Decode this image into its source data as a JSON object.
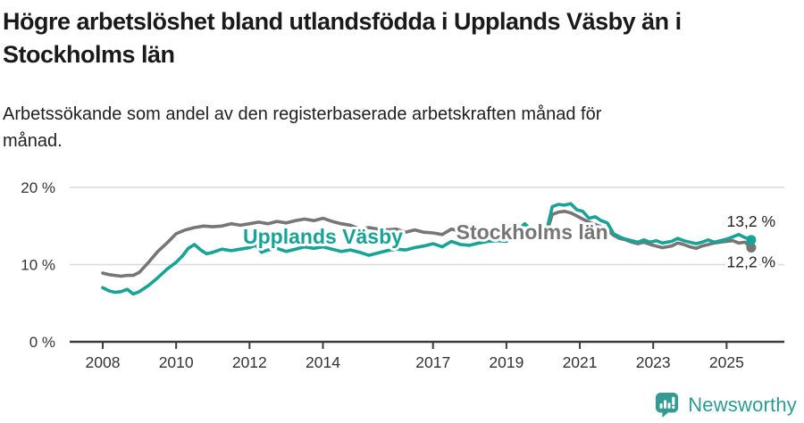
{
  "header": {
    "title": "Högre arbetslöshet bland utlandsfödda i Upplands Väsby än i Stockholms län",
    "subtitle": "Arbetssökande som andel av den registerbaserade arbetskraften månad för månad."
  },
  "chart_data": {
    "type": "line",
    "title": "Högre arbetslöshet bland utlandsfödda i Upplands Väsby än i Stockholms län",
    "subtitle": "Arbetssökande som andel av den registerbaserade arbetskraften månad för månad.",
    "unit": "%",
    "grid": "horizontal-only",
    "legend_position": "inline-on-lines",
    "xlim": [
      2007.2,
      2026.2
    ],
    "ylim": [
      0,
      20
    ],
    "x_ticks": [
      2008,
      2010,
      2012,
      2014,
      2017,
      2019,
      2021,
      2023,
      2025
    ],
    "y_ticks": [
      {
        "value": 0,
        "label": "0 %"
      },
      {
        "value": 10,
        "label": "10 %"
      },
      {
        "value": 20,
        "label": "20 %"
      }
    ],
    "series": [
      {
        "name": "Stockholms län",
        "color": "#767676",
        "end_label": "12,2 %",
        "end_value": 12.2,
        "label_at": {
          "x": 2019.7,
          "y": 13.3
        },
        "points": [
          [
            2008.0,
            8.9
          ],
          [
            2008.17,
            8.7
          ],
          [
            2008.33,
            8.6
          ],
          [
            2008.5,
            8.5
          ],
          [
            2008.67,
            8.6
          ],
          [
            2008.83,
            8.6
          ],
          [
            2009.0,
            9.0
          ],
          [
            2009.25,
            10.3
          ],
          [
            2009.5,
            11.7
          ],
          [
            2009.75,
            12.8
          ],
          [
            2010.0,
            14.0
          ],
          [
            2010.25,
            14.5
          ],
          [
            2010.5,
            14.8
          ],
          [
            2010.75,
            15.0
          ],
          [
            2011.0,
            14.9
          ],
          [
            2011.25,
            15.0
          ],
          [
            2011.5,
            15.3
          ],
          [
            2011.75,
            15.1
          ],
          [
            2012.0,
            15.3
          ],
          [
            2012.25,
            15.5
          ],
          [
            2012.5,
            15.3
          ],
          [
            2012.75,
            15.6
          ],
          [
            2013.0,
            15.4
          ],
          [
            2013.25,
            15.7
          ],
          [
            2013.5,
            15.9
          ],
          [
            2013.75,
            15.7
          ],
          [
            2014.0,
            16.0
          ],
          [
            2014.25,
            15.6
          ],
          [
            2014.5,
            15.3
          ],
          [
            2014.75,
            15.1
          ],
          [
            2015.0,
            14.6
          ],
          [
            2015.25,
            14.8
          ],
          [
            2015.5,
            14.6
          ],
          [
            2015.75,
            14.5
          ],
          [
            2016.0,
            14.6
          ],
          [
            2016.25,
            14.2
          ],
          [
            2016.5,
            14.5
          ],
          [
            2016.75,
            14.2
          ],
          [
            2017.0,
            14.1
          ],
          [
            2017.25,
            13.9
          ],
          [
            2017.5,
            14.6
          ],
          [
            2017.75,
            14.3
          ],
          [
            2018.0,
            14.4
          ],
          [
            2018.25,
            14.2
          ],
          [
            2018.5,
            14.3
          ],
          [
            2018.75,
            14.0
          ],
          [
            2019.0,
            13.9
          ],
          [
            2019.25,
            14.0
          ],
          [
            2019.5,
            14.2
          ],
          [
            2019.75,
            13.8
          ],
          [
            2019.92,
            13.9
          ],
          [
            2020.1,
            14.2
          ],
          [
            2020.25,
            16.5
          ],
          [
            2020.42,
            16.8
          ],
          [
            2020.58,
            16.9
          ],
          [
            2020.75,
            16.7
          ],
          [
            2020.92,
            16.3
          ],
          [
            2021.08,
            15.9
          ],
          [
            2021.25,
            15.5
          ],
          [
            2021.42,
            15.2
          ],
          [
            2021.58,
            14.9
          ],
          [
            2021.75,
            14.5
          ],
          [
            2021.92,
            13.8
          ],
          [
            2022.08,
            13.4
          ],
          [
            2022.25,
            13.2
          ],
          [
            2022.42,
            12.9
          ],
          [
            2022.58,
            12.7
          ],
          [
            2022.75,
            12.9
          ],
          [
            2022.92,
            12.6
          ],
          [
            2023.08,
            12.4
          ],
          [
            2023.25,
            12.2
          ],
          [
            2023.5,
            12.4
          ],
          [
            2023.67,
            12.8
          ],
          [
            2023.83,
            12.6
          ],
          [
            2024.0,
            12.3
          ],
          [
            2024.17,
            12.1
          ],
          [
            2024.33,
            12.4
          ],
          [
            2024.5,
            12.6
          ],
          [
            2024.67,
            12.8
          ],
          [
            2024.83,
            12.9
          ],
          [
            2025.0,
            13.0
          ],
          [
            2025.17,
            13.1
          ],
          [
            2025.33,
            12.8
          ],
          [
            2025.5,
            12.9
          ],
          [
            2025.67,
            12.2
          ]
        ]
      },
      {
        "name": "Upplands Väsby",
        "color": "#18a396",
        "end_label": "13,2 %",
        "end_value": 13.2,
        "label_at": {
          "x": 2014.0,
          "y": 12.7
        },
        "points": [
          [
            2008.0,
            7.0
          ],
          [
            2008.17,
            6.6
          ],
          [
            2008.33,
            6.4
          ],
          [
            2008.5,
            6.5
          ],
          [
            2008.67,
            6.8
          ],
          [
            2008.83,
            6.2
          ],
          [
            2009.0,
            6.5
          ],
          [
            2009.25,
            7.3
          ],
          [
            2009.5,
            8.3
          ],
          [
            2009.75,
            9.4
          ],
          [
            2010.0,
            10.3
          ],
          [
            2010.17,
            11.1
          ],
          [
            2010.33,
            12.1
          ],
          [
            2010.5,
            12.6
          ],
          [
            2010.67,
            11.9
          ],
          [
            2010.83,
            11.4
          ],
          [
            2011.0,
            11.6
          ],
          [
            2011.25,
            12.0
          ],
          [
            2011.5,
            11.8
          ],
          [
            2011.75,
            12.0
          ],
          [
            2012.0,
            12.2
          ],
          [
            2012.17,
            12.5
          ],
          [
            2012.33,
            11.6
          ],
          [
            2012.5,
            11.9
          ],
          [
            2012.75,
            12.1
          ],
          [
            2013.0,
            11.7
          ],
          [
            2013.25,
            12.0
          ],
          [
            2013.5,
            12.3
          ],
          [
            2013.75,
            12.1
          ],
          [
            2014.0,
            12.3
          ],
          [
            2014.25,
            12.0
          ],
          [
            2014.5,
            11.7
          ],
          [
            2014.75,
            11.9
          ],
          [
            2015.0,
            11.6
          ],
          [
            2015.25,
            11.2
          ],
          [
            2015.5,
            11.5
          ],
          [
            2015.75,
            11.8
          ],
          [
            2016.0,
            12.0
          ],
          [
            2016.25,
            11.9
          ],
          [
            2016.5,
            12.2
          ],
          [
            2016.75,
            12.4
          ],
          [
            2017.0,
            12.7
          ],
          [
            2017.25,
            12.3
          ],
          [
            2017.5,
            13.0
          ],
          [
            2017.75,
            12.6
          ],
          [
            2018.0,
            12.5
          ],
          [
            2018.25,
            12.8
          ],
          [
            2018.5,
            13.0
          ],
          [
            2018.75,
            13.1
          ],
          [
            2019.0,
            13.0
          ],
          [
            2019.25,
            14.2
          ],
          [
            2019.5,
            15.3
          ],
          [
            2019.75,
            14.2
          ],
          [
            2019.92,
            14.0
          ],
          [
            2020.1,
            14.5
          ],
          [
            2020.25,
            17.5
          ],
          [
            2020.42,
            17.8
          ],
          [
            2020.58,
            17.7
          ],
          [
            2020.75,
            17.9
          ],
          [
            2020.92,
            17.1
          ],
          [
            2021.08,
            16.9
          ],
          [
            2021.25,
            16.0
          ],
          [
            2021.42,
            16.2
          ],
          [
            2021.58,
            15.7
          ],
          [
            2021.75,
            15.4
          ],
          [
            2021.92,
            14.0
          ],
          [
            2022.08,
            13.6
          ],
          [
            2022.25,
            13.3
          ],
          [
            2022.42,
            13.1
          ],
          [
            2022.58,
            12.9
          ],
          [
            2022.75,
            13.2
          ],
          [
            2022.92,
            12.9
          ],
          [
            2023.08,
            13.1
          ],
          [
            2023.25,
            12.8
          ],
          [
            2023.5,
            13.0
          ],
          [
            2023.67,
            13.4
          ],
          [
            2023.83,
            13.1
          ],
          [
            2024.0,
            12.9
          ],
          [
            2024.17,
            12.7
          ],
          [
            2024.33,
            12.9
          ],
          [
            2024.5,
            13.2
          ],
          [
            2024.67,
            12.9
          ],
          [
            2024.83,
            13.1
          ],
          [
            2025.0,
            13.3
          ],
          [
            2025.17,
            13.6
          ],
          [
            2025.33,
            13.9
          ],
          [
            2025.5,
            13.5
          ],
          [
            2025.67,
            13.2
          ]
        ]
      }
    ]
  },
  "footer": {
    "brand": "Newsworthy",
    "logo_icon": "newsworthy-chart-bubble-icon",
    "brand_color": "#2d9c94",
    "logo_color": "#359a92"
  },
  "colors": {
    "upplands": "#18a396",
    "stockholm": "#767676",
    "gridline": "#dcdcdc",
    "axis": "#3c3c3c",
    "tick_label": "#333333",
    "title": "#1a1a1a"
  }
}
